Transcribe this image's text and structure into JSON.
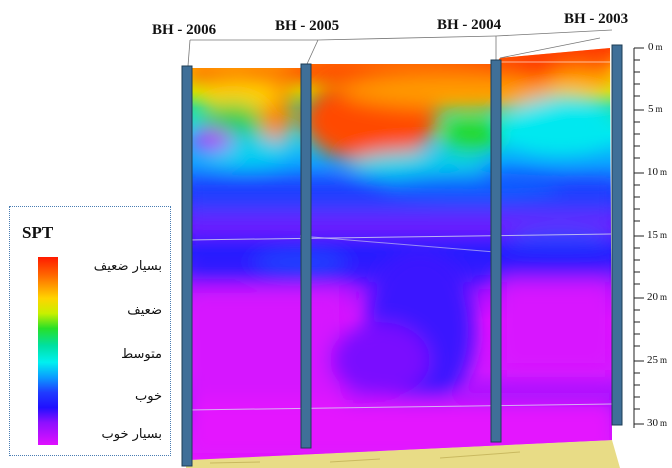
{
  "boreholes": [
    "BH - 2006",
    "BH - 2005",
    "BH - 2004",
    "BH - 2003"
  ],
  "depth_ticks": [
    {
      "value": "0",
      "unit": "m"
    },
    {
      "value": "5",
      "unit": "m"
    },
    {
      "value": "10",
      "unit": "m"
    },
    {
      "value": "15",
      "unit": "m"
    },
    {
      "value": "20",
      "unit": "m"
    },
    {
      "value": "25",
      "unit": "m"
    },
    {
      "value": "30",
      "unit": "m"
    }
  ],
  "legend": {
    "title": "SPT",
    "items": [
      "بسیار ضعیف",
      "ضعیف",
      "متوسط",
      "خوب",
      "بسیار خوب"
    ]
  },
  "colors": {
    "very_weak": "#ff1a00",
    "weak": "#ffd400",
    "medium": "#28e028",
    "good_light": "#00f0f0",
    "good": "#1f3cff",
    "very_good": "#e010ff",
    "borehole": "#3f6f98",
    "ground": "#e8dc86"
  }
}
